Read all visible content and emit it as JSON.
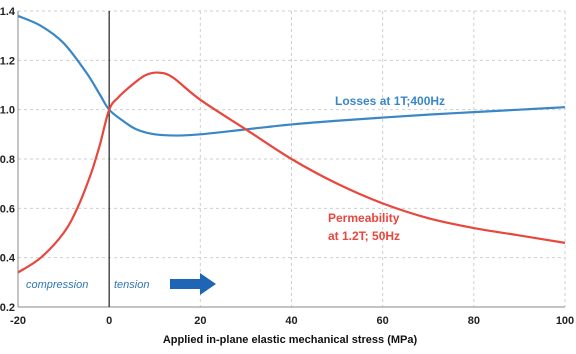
{
  "chart_data": {
    "type": "line",
    "title": "",
    "xlabel": "Applied in-plane elastic mechanical stress  (MPa)",
    "ylabel": "",
    "xlim": [
      -20,
      100
    ],
    "ylim": [
      0.2,
      1.4
    ],
    "xticks": [
      "-20",
      "0",
      "20",
      "40",
      "60",
      "80",
      "100"
    ],
    "yticks": [
      "0.2",
      "0.4",
      "0.6",
      "0.8",
      "1.0",
      "1.2",
      "1.4"
    ],
    "grid": true,
    "series": [
      {
        "name": "Losses at 1T;400Hz",
        "color": "#3a87c8",
        "x": [
          -20,
          -15,
          -10,
          -5,
          -2,
          0,
          3,
          6,
          10,
          15,
          20,
          30,
          40,
          50,
          60,
          70,
          80,
          90,
          100
        ],
        "y": [
          1.38,
          1.34,
          1.27,
          1.15,
          1.06,
          1.0,
          0.955,
          0.92,
          0.9,
          0.895,
          0.9,
          0.92,
          0.94,
          0.955,
          0.968,
          0.98,
          0.99,
          1.0,
          1.01
        ]
      },
      {
        "name": "Permeability at 1.2T; 50Hz",
        "color": "#e8473d",
        "x": [
          -20,
          -15,
          -10,
          -7,
          -4,
          -2,
          0,
          2,
          5,
          8,
          11,
          14,
          20,
          30,
          40,
          50,
          60,
          70,
          80,
          90,
          100
        ],
        "y": [
          0.34,
          0.4,
          0.5,
          0.6,
          0.74,
          0.86,
          1.0,
          1.05,
          1.1,
          1.14,
          1.15,
          1.13,
          1.04,
          0.92,
          0.8,
          0.7,
          0.62,
          0.56,
          0.52,
          0.49,
          0.46
        ]
      }
    ],
    "annotations": {
      "compression": "compression",
      "tension": "tension"
    }
  }
}
